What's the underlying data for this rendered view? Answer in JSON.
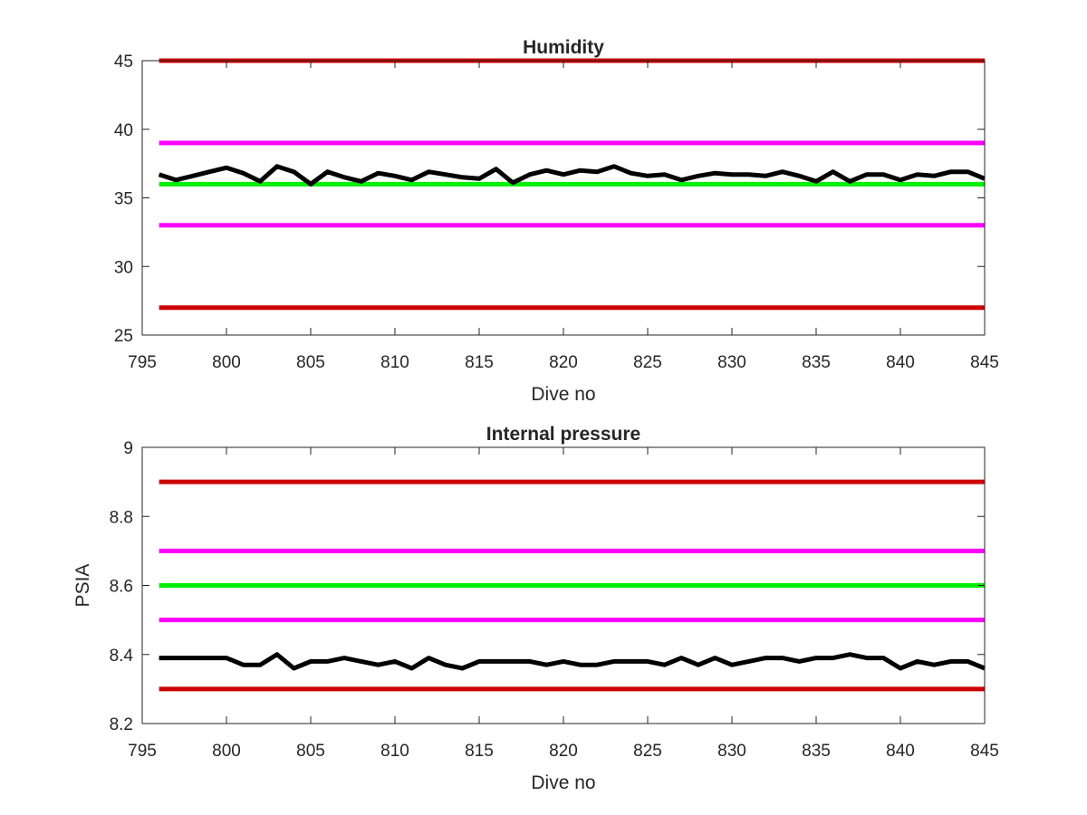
{
  "chart_data": [
    {
      "type": "line",
      "title": "Humidity",
      "xlabel": "Dive no",
      "ylabel": "",
      "xlim": [
        795,
        845
      ],
      "ylim": [
        25,
        45
      ],
      "xticks": [
        "795",
        "800",
        "805",
        "810",
        "815",
        "820",
        "825",
        "830",
        "835",
        "840",
        "845"
      ],
      "yticks": [
        "25",
        "30",
        "35",
        "40",
        "45"
      ],
      "grid": false,
      "reference_lines": [
        {
          "value": 45,
          "color": "#cc0000"
        },
        {
          "value": 39,
          "color": "#ff00ff"
        },
        {
          "value": 36,
          "color": "#00ee00"
        },
        {
          "value": 33,
          "color": "#ff00ff"
        },
        {
          "value": 27,
          "color": "#cc0000"
        }
      ],
      "series": [
        {
          "color": "#000000",
          "x": [
            796,
            797,
            798,
            799,
            800,
            801,
            802,
            803,
            804,
            805,
            806,
            807,
            808,
            809,
            810,
            811,
            812,
            813,
            814,
            815,
            816,
            817,
            818,
            819,
            820,
            821,
            822,
            823,
            824,
            825,
            826,
            827,
            828,
            829,
            830,
            831,
            832,
            833,
            834,
            835,
            836,
            837,
            838,
            839,
            840,
            841,
            842,
            843,
            844,
            845
          ],
          "values": [
            36.7,
            36.3,
            36.6,
            36.9,
            37.2,
            36.8,
            36.2,
            37.3,
            36.9,
            36.0,
            36.9,
            36.5,
            36.2,
            36.8,
            36.6,
            36.3,
            36.9,
            36.7,
            36.5,
            36.4,
            37.1,
            36.1,
            36.7,
            37.0,
            36.7,
            37.0,
            36.9,
            37.3,
            36.8,
            36.6,
            36.7,
            36.3,
            36.6,
            36.8,
            36.7,
            36.7,
            36.6,
            36.9,
            36.6,
            36.2,
            36.9,
            36.2,
            36.7,
            36.7,
            36.3,
            36.7,
            36.6,
            36.9,
            36.9,
            36.4
          ]
        }
      ]
    },
    {
      "type": "line",
      "title": "Internal pressure",
      "xlabel": "Dive no",
      "ylabel": "PSIA",
      "xlim": [
        795,
        845
      ],
      "ylim": [
        8.2,
        9.0
      ],
      "xticks": [
        "795",
        "800",
        "805",
        "810",
        "815",
        "820",
        "825",
        "830",
        "835",
        "840",
        "845"
      ],
      "yticks": [
        "8.2",
        "8.4",
        "8.6",
        "8.8",
        "9"
      ],
      "grid": false,
      "reference_lines": [
        {
          "value": 8.9,
          "color": "#cc0000"
        },
        {
          "value": 8.7,
          "color": "#ff00ff"
        },
        {
          "value": 8.6,
          "color": "#00ee00"
        },
        {
          "value": 8.5,
          "color": "#ff00ff"
        },
        {
          "value": 8.3,
          "color": "#cc0000"
        }
      ],
      "series": [
        {
          "color": "#000000",
          "x": [
            796,
            797,
            798,
            799,
            800,
            801,
            802,
            803,
            804,
            805,
            806,
            807,
            808,
            809,
            810,
            811,
            812,
            813,
            814,
            815,
            816,
            817,
            818,
            819,
            820,
            821,
            822,
            823,
            824,
            825,
            826,
            827,
            828,
            829,
            830,
            831,
            832,
            833,
            834,
            835,
            836,
            837,
            838,
            839,
            840,
            841,
            842,
            843,
            844,
            845
          ],
          "values": [
            8.39,
            8.39,
            8.39,
            8.39,
            8.39,
            8.37,
            8.37,
            8.4,
            8.36,
            8.38,
            8.38,
            8.39,
            8.38,
            8.37,
            8.38,
            8.36,
            8.39,
            8.37,
            8.36,
            8.38,
            8.38,
            8.38,
            8.38,
            8.37,
            8.38,
            8.37,
            8.37,
            8.38,
            8.38,
            8.38,
            8.37,
            8.39,
            8.37,
            8.39,
            8.37,
            8.38,
            8.39,
            8.39,
            8.38,
            8.39,
            8.39,
            8.4,
            8.39,
            8.39,
            8.36,
            8.38,
            8.37,
            8.38,
            8.38,
            8.36
          ]
        }
      ]
    }
  ]
}
